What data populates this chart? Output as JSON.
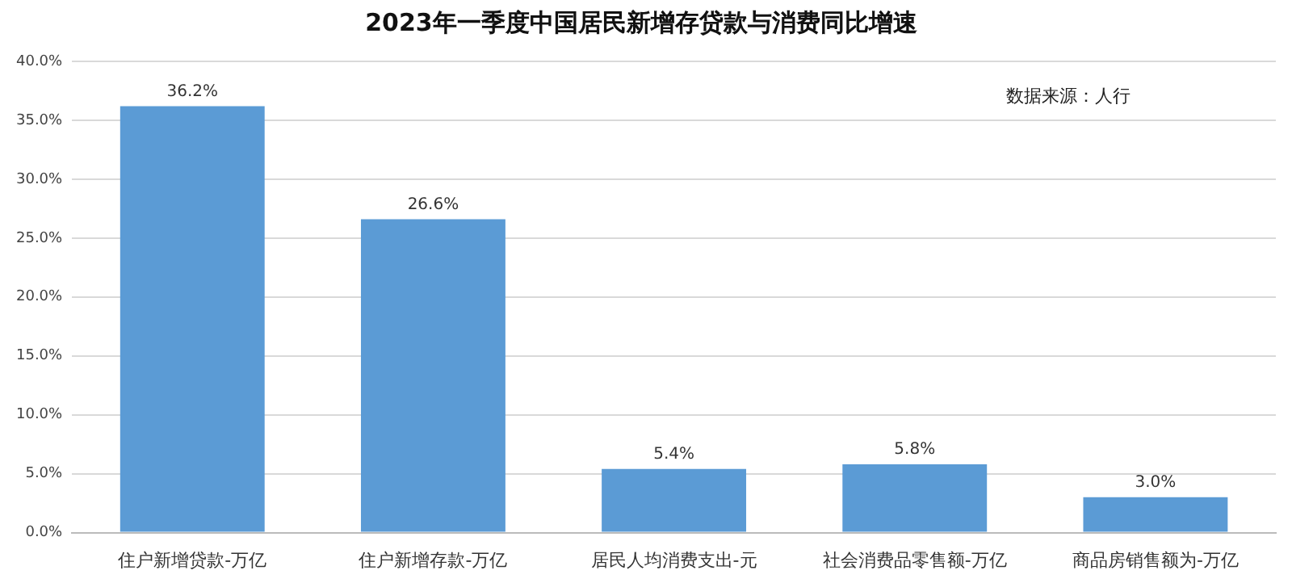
{
  "chart_data": {
    "type": "bar",
    "title": "2023年一季度中国居民新增存贷款与消费同比增速",
    "categories": [
      "住户新增贷款-万亿",
      "住户新增存款-万亿",
      "居民人均消费支出-元",
      "社会消费品零售额-万亿",
      "商品房销售额为-万亿"
    ],
    "values": [
      36.2,
      26.6,
      5.4,
      5.8,
      3.0
    ],
    "color": "#5b9bd5",
    "value_labels": [
      "36.2%",
      "26.6%",
      "5.4%",
      "5.8%",
      "3.0%"
    ],
    "ylim": [
      0,
      40
    ],
    "yticks": [
      {
        "value": 0,
        "label": "0.0%"
      },
      {
        "value": 5,
        "label": "5.0%"
      },
      {
        "value": 10,
        "label": "10.0%"
      },
      {
        "value": 15,
        "label": "15.0%"
      },
      {
        "value": 20,
        "label": "20.0%"
      },
      {
        "value": 25,
        "label": "25.0%"
      },
      {
        "value": 30,
        "label": "30.0%"
      },
      {
        "value": 35,
        "label": "35.0%"
      },
      {
        "value": 40,
        "label": "40.0%"
      }
    ],
    "grid": "y",
    "legend": false,
    "annotations": [
      "数据来源：人行"
    ]
  }
}
